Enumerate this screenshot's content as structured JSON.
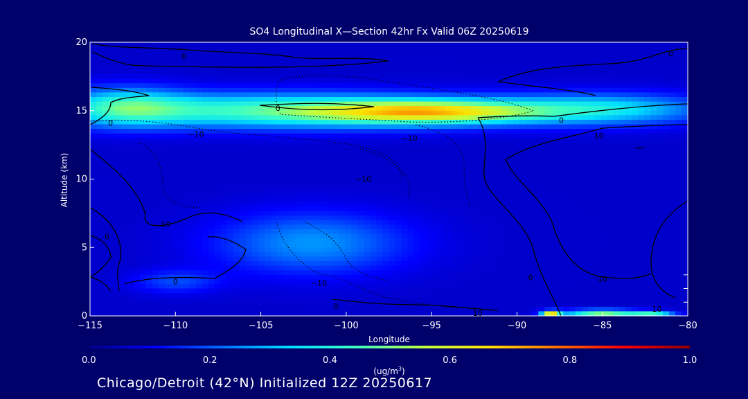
{
  "chart_data": {
    "type": "heatmap",
    "title": "SO4 Longitudinal X—Section 42hr  Fx Valid 06Z 20250619",
    "xlabel": "Longitude",
    "ylabel": "Altitude (km)",
    "xlim": [
      -115,
      -80
    ],
    "ylim": [
      0,
      20
    ],
    "x_ticks": [
      -115,
      -110,
      -105,
      -100,
      -95,
      -90,
      -85,
      -80
    ],
    "x_tick_labels": [
      "−115",
      "−110",
      "−105",
      "−100",
      "−95",
      "−90",
      "−85",
      "−80"
    ],
    "y_ticks": [
      0,
      5,
      10,
      15,
      20
    ],
    "y_tick_labels": [
      "0",
      "5",
      "10",
      "15",
      "20"
    ],
    "colorbar": {
      "min": 0.0,
      "max": 1.0,
      "ticks": [
        0.0,
        0.2,
        0.4,
        0.6,
        0.8,
        1.0
      ],
      "tick_labels": [
        "0.0",
        "0.2",
        "0.4",
        "0.6",
        "0.8",
        "1.0"
      ],
      "unit_text": "(ug/m",
      "unit_sup": "3",
      "unit_close": ")",
      "colors": [
        "#00008f",
        "#0000ff",
        "#0070ff",
        "#00e0ff",
        "#40ffc0",
        "#c0ff40",
        "#ffe000",
        "#ff7000",
        "#ff0000",
        "#8f0000"
      ]
    },
    "field": {
      "background": 0.06,
      "blobs": [
        {
          "lon": -104,
          "alt": 15.0,
          "slon": 8.0,
          "salt": 0.9,
          "value": 0.38
        },
        {
          "lon": -95,
          "alt": 14.9,
          "slon": 4.5,
          "salt": 0.6,
          "value": 0.45
        },
        {
          "lon": -85,
          "alt": 15.1,
          "slon": 4.5,
          "salt": 0.8,
          "value": 0.28
        },
        {
          "lon": -113,
          "alt": 15.3,
          "slon": 2.5,
          "salt": 1.0,
          "value": 0.25
        },
        {
          "lon": -102,
          "alt": 5.3,
          "slon": 4.0,
          "salt": 1.6,
          "value": 0.2
        },
        {
          "lon": -110,
          "alt": 2.5,
          "slon": 1.8,
          "salt": 0.6,
          "value": 0.12
        },
        {
          "lon": -85,
          "alt": 0.25,
          "slon": 1.6,
          "salt": 0.15,
          "value": 0.5
        },
        {
          "lon": -88,
          "alt": 0.2,
          "slon": 0.4,
          "salt": 0.15,
          "value": 0.55
        },
        {
          "lon": -82,
          "alt": 0.2,
          "slon": 0.9,
          "salt": 0.12,
          "value": 0.3
        }
      ]
    },
    "contour_labels": [
      {
        "text": "0",
        "lon": -109.5,
        "alt": 19.0
      },
      {
        "text": "0",
        "lon": -81.0,
        "alt": 19.2
      },
      {
        "text": "0",
        "lon": -104.0,
        "alt": 15.2
      },
      {
        "text": "0",
        "lon": -113.8,
        "alt": 14.1
      },
      {
        "text": "0",
        "lon": -87.4,
        "alt": 14.3
      },
      {
        "text": "−10",
        "lon": -108.8,
        "alt": 13.3
      },
      {
        "text": "−10",
        "lon": -96.3,
        "alt": 13.0
      },
      {
        "text": "10",
        "lon": -85.2,
        "alt": 13.2
      },
      {
        "text": "−10",
        "lon": -99.0,
        "alt": 10.0
      },
      {
        "text": "10",
        "lon": -110.6,
        "alt": 6.7
      },
      {
        "text": "0",
        "lon": -114.0,
        "alt": 5.8
      },
      {
        "text": "0",
        "lon": -110.0,
        "alt": 2.5
      },
      {
        "text": "−10",
        "lon": -101.6,
        "alt": 2.4
      },
      {
        "text": "0",
        "lon": -100.6,
        "alt": 0.7
      },
      {
        "text": "0",
        "lon": -89.2,
        "alt": 2.8
      },
      {
        "text": "10",
        "lon": -85.0,
        "alt": 2.7
      },
      {
        "text": "10",
        "lon": -92.3,
        "alt": 0.2
      },
      {
        "text": "10",
        "lon": -81.8,
        "alt": 0.5
      }
    ]
  },
  "footer": {
    "text": "Chicago/Detroit (42°N) Initialized 12Z 20250617"
  }
}
